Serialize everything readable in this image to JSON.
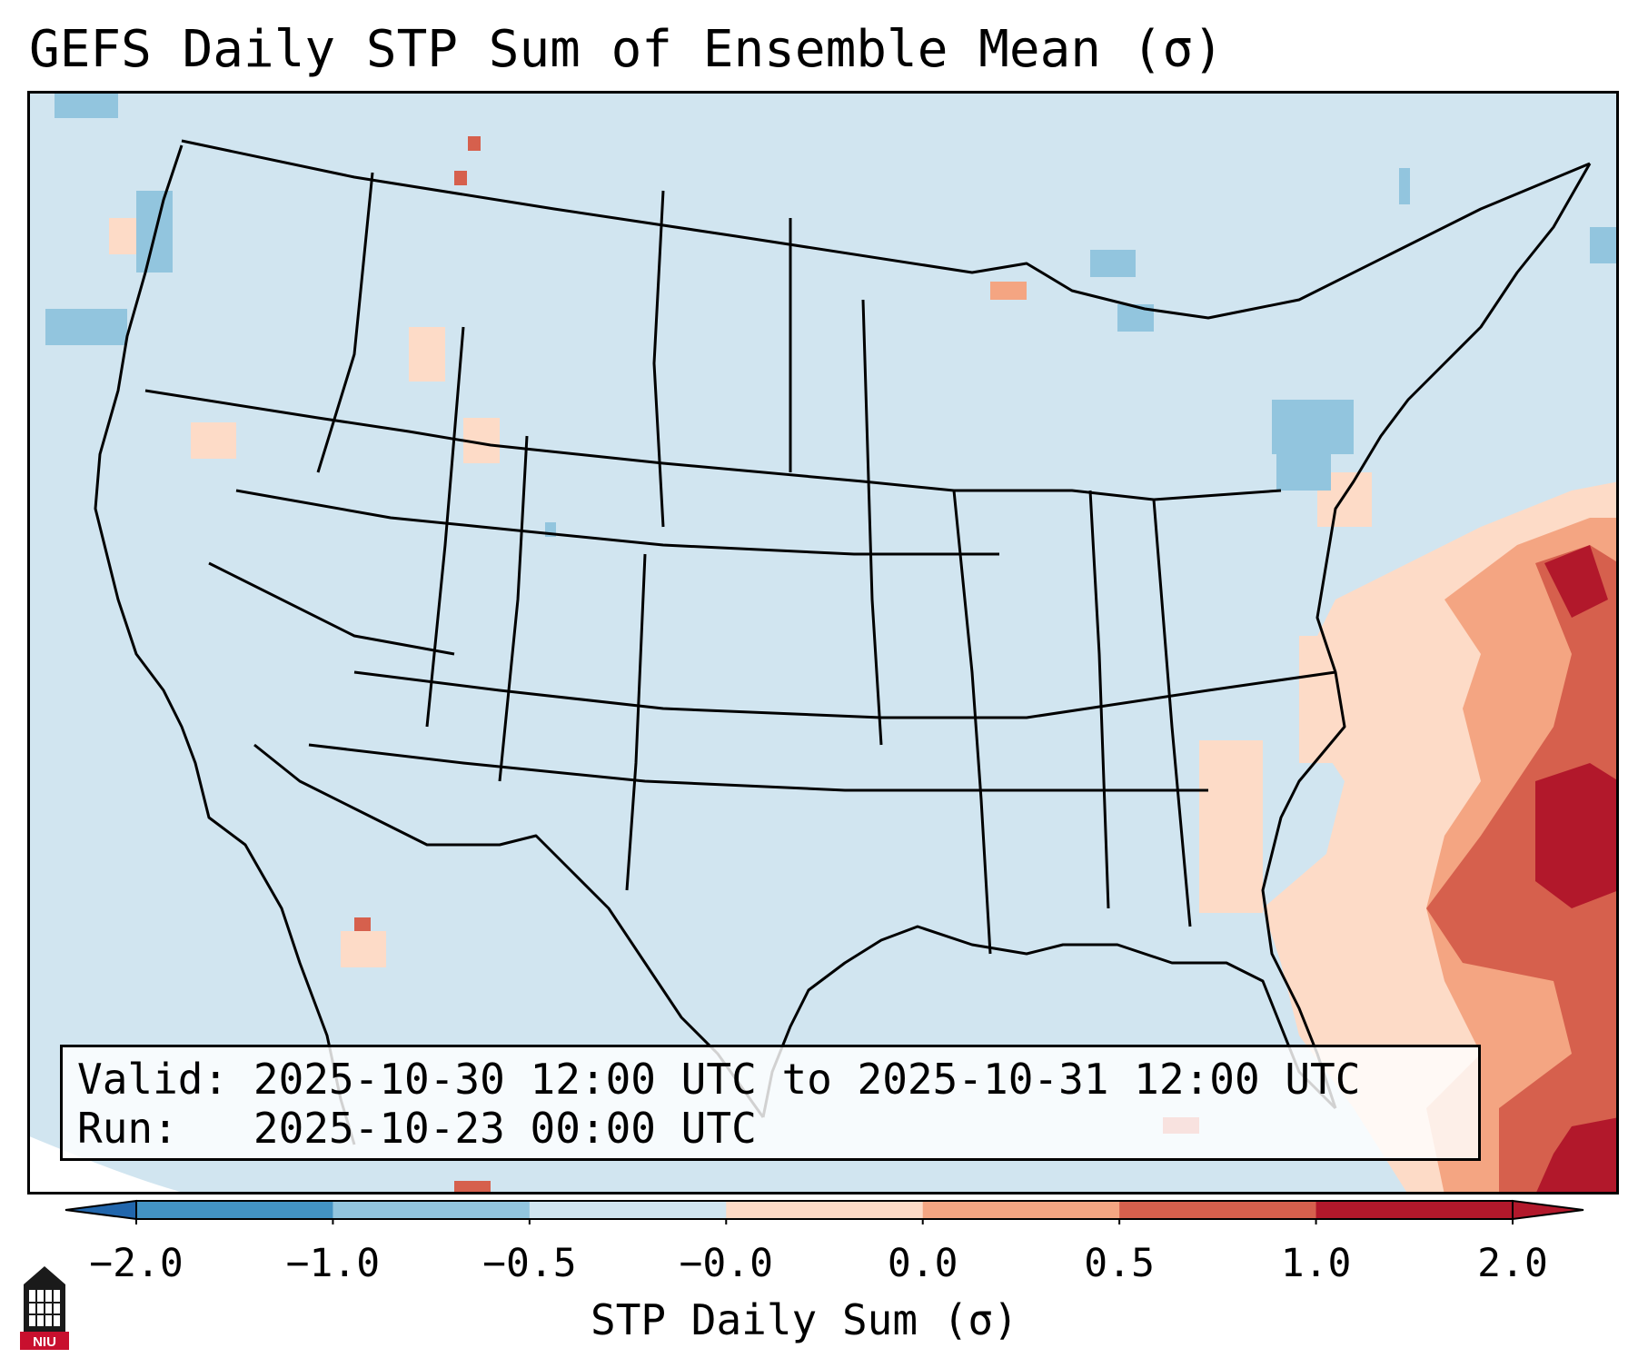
{
  "title": "GEFS Daily STP Sum of Ensemble Mean (σ)",
  "info": {
    "valid_label": "Valid:",
    "valid_value": "2025-10-30 12:00 UTC to 2025-10-31 12:00 UTC",
    "run_label": "Run:",
    "run_value": "2025-10-23 00:00 UTC"
  },
  "colorbar": {
    "label": "STP Daily Sum (σ)",
    "ticks": [
      "−2.0",
      "−1.0",
      "−0.5",
      "−0.0",
      "0.0",
      "0.5",
      "1.0",
      "2.0"
    ],
    "colors": [
      "#4393c3",
      "#92c5de",
      "#d1e5f0",
      "#fddbc7",
      "#f4a582",
      "#d6604d",
      "#b2182b"
    ],
    "extend_low_color": "#2166ac",
    "extend_high_color": "#b2182b"
  },
  "map": {
    "background_color": "#d1e5f0",
    "region": "Contiguous United States"
  },
  "logo": {
    "text": "NIU"
  }
}
